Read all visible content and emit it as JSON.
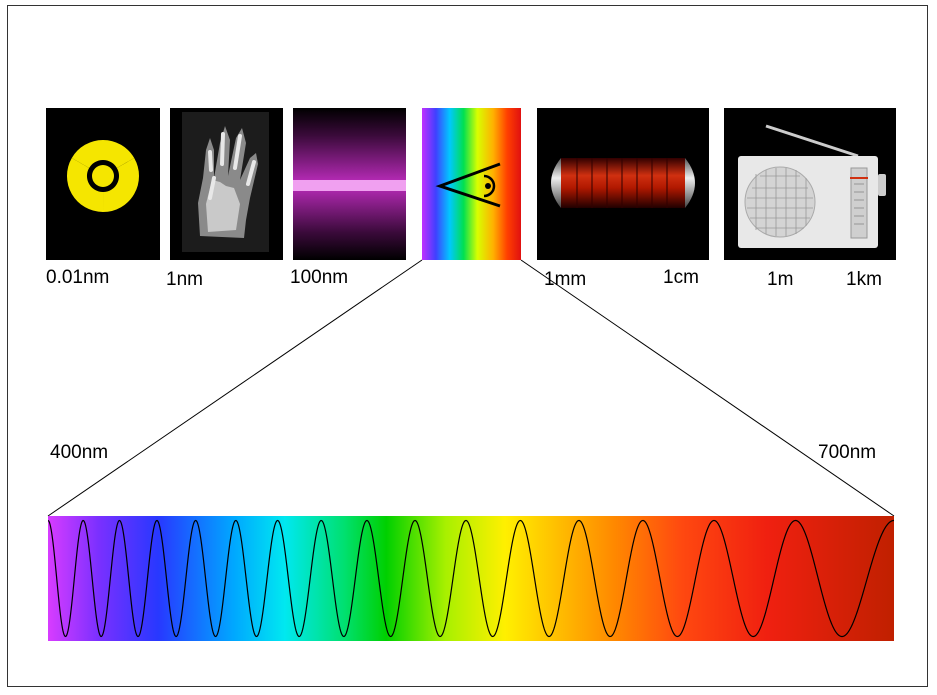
{
  "top_scale_labels": {
    "gamma": "0.01nm",
    "xray": "1nm",
    "uv": "100nm",
    "microwave_low": "1mm",
    "microwave_high": "1cm",
    "radio_low": "1m",
    "radio_high": "1km"
  },
  "visible_range": {
    "start_label": "400nm",
    "end_label": "700nm"
  },
  "icons": {
    "gamma": "radiation-hazard-icon",
    "xray": "xray-hand-icon",
    "uv": "uv-lamp-icon",
    "visible": "eye-icon",
    "microwave": "magnetron-icon",
    "radio": "radio-receiver-icon"
  },
  "colors": {
    "radiation_yellow": "#f5e600",
    "uv_purple": "#b42ab4",
    "microwave_red": "#b01800",
    "radio_body": "#e8e8e8"
  },
  "wave": {
    "cycles": 16
  }
}
